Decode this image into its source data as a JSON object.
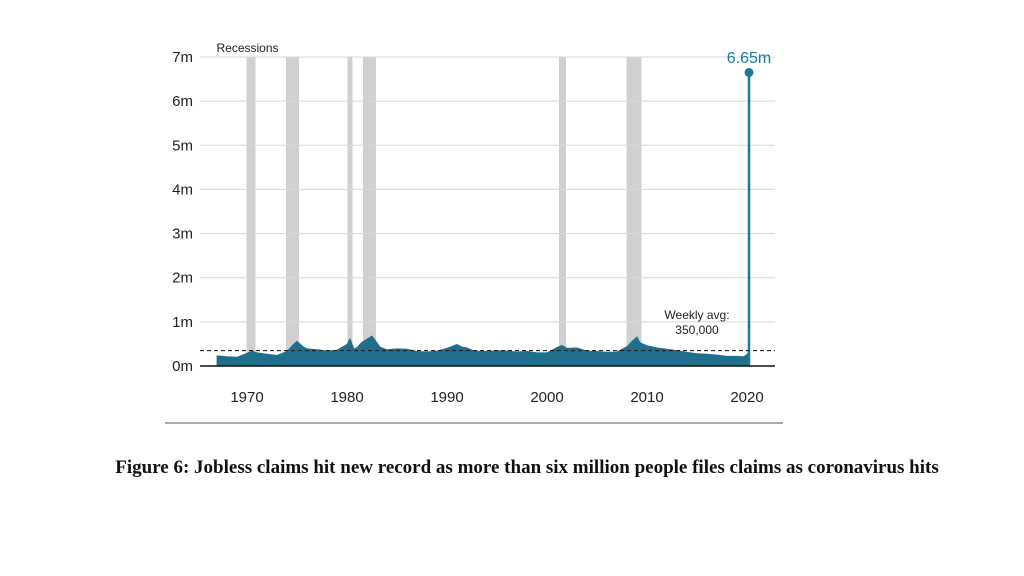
{
  "caption": "Figure 6: Jobless claims hit new record as more than six million people files claims as coronavirus hits",
  "chart_data": {
    "type": "area",
    "title": "",
    "xlabel": "",
    "ylabel": "",
    "xlim": [
      1965.3,
      2022.8
    ],
    "ylim": [
      0,
      7000000
    ],
    "x_ticks": [
      1970,
      1980,
      1990,
      2000,
      2010,
      2020
    ],
    "x_tick_labels": [
      "1970",
      "1980",
      "1990",
      "2000",
      "2010",
      "2020"
    ],
    "y_ticks": [
      0,
      1000000,
      2000000,
      3000000,
      4000000,
      5000000,
      6000000,
      7000000
    ],
    "y_tick_labels": [
      "0m",
      "1m",
      "2m",
      "3m",
      "4m",
      "5m",
      "6m",
      "7m"
    ],
    "grid": true,
    "series": [
      {
        "color": "#1f6e8c",
        "x": [
          1967.0,
          1968.0,
          1969.0,
          1970.0,
          1970.5,
          1971.0,
          1972.0,
          1973.0,
          1974.0,
          1974.6,
          1975.0,
          1975.6,
          1976.0,
          1977.0,
          1978.0,
          1979.0,
          1980.0,
          1980.3,
          1980.7,
          1981.0,
          1981.5,
          1982.0,
          1982.5,
          1982.9,
          1983.3,
          1984.0,
          1985.0,
          1986.0,
          1987.0,
          1988.0,
          1989.0,
          1990.0,
          1991.0,
          1991.5,
          1992.0,
          1992.5,
          1993.0,
          1994.0,
          1995.0,
          1996.0,
          1997.0,
          1998.0,
          1999.0,
          2000.0,
          2001.0,
          2001.5,
          2002.0,
          2003.0,
          2004.0,
          2005.0,
          2006.0,
          2007.0,
          2008.0,
          2008.5,
          2009.0,
          2009.3,
          2010.0,
          2011.0,
          2012.0,
          2013.0,
          2014.0,
          2015.0,
          2016.0,
          2017.0,
          2018.0,
          2019.0,
          2019.7,
          2020.1,
          2020.2
        ],
        "y": [
          230000,
          210000,
          200000,
          290000,
          340000,
          300000,
          270000,
          240000,
          330000,
          480000,
          560000,
          440000,
          390000,
          370000,
          340000,
          360000,
          490000,
          620000,
          380000,
          420000,
          540000,
          610000,
          680000,
          560000,
          430000,
          370000,
          390000,
          380000,
          330000,
          320000,
          340000,
          400000,
          490000,
          430000,
          410000,
          360000,
          340000,
          330000,
          350000,
          340000,
          320000,
          330000,
          300000,
          300000,
          420000,
          470000,
          400000,
          410000,
          340000,
          330000,
          310000,
          320000,
          440000,
          560000,
          660000,
          530000,
          460000,
          410000,
          380000,
          350000,
          310000,
          280000,
          270000,
          250000,
          220000,
          220000,
          210000,
          280000,
          6650000
        ]
      }
    ],
    "recessions": [
      {
        "start": 1969.95,
        "end": 1970.85
      },
      {
        "start": 1973.9,
        "end": 1975.2
      },
      {
        "start": 1980.05,
        "end": 1980.55
      },
      {
        "start": 1981.6,
        "end": 1982.9
      },
      {
        "start": 2001.2,
        "end": 2001.9
      },
      {
        "start": 2007.95,
        "end": 2009.45
      }
    ],
    "recessions_label": "Recessions",
    "reference_line": {
      "value": 350000,
      "label_line1": "Weekly avg:",
      "label_line2": "350,000"
    },
    "peak": {
      "x": 2020.2,
      "y": 6650000,
      "label": "6.65m"
    },
    "colors": {
      "area": "#1f6e8c",
      "peak": "#1a7a9c",
      "recession": "#d0d0d0",
      "grid": "#d8d8d8",
      "axis": "#111111",
      "reference": "#222222"
    }
  }
}
